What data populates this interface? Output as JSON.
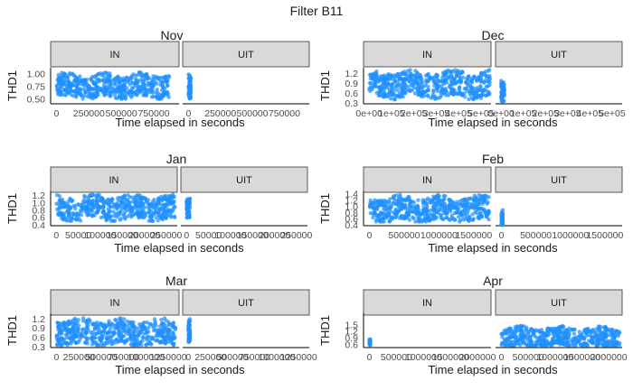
{
  "figure": {
    "title": "Filter B11"
  },
  "colors": {
    "point": "#1E90FF",
    "strip_fill": "#D9D9D9",
    "strip_border": "#333333",
    "axis": "#000000",
    "text": "#1a1a1a",
    "tick_text": "#4d4d4d"
  },
  "chart_data": [
    {
      "type": "scatter",
      "title": "Nov",
      "xlabel": "Time elapsed in seconds",
      "ylabel": "THD1",
      "y_ticks": [
        "0.50",
        "0.75",
        "1.00"
      ],
      "y_tick_values": [
        0.5,
        0.75,
        1.0
      ],
      "ylim": [
        0.4,
        1.12
      ],
      "facets": [
        {
          "strip": "IN",
          "x_ticks": [
            "0",
            "250000",
            "500000",
            "750000"
          ],
          "x_tick_values": [
            0,
            250000,
            500000,
            750000
          ],
          "xlim": [
            -45000,
            945000
          ],
          "x_range": [
            0,
            870000
          ],
          "y_band": [
            0.5,
            1.05
          ],
          "y_center": 0.75
        },
        {
          "strip": "UIT",
          "x_ticks": [
            "0",
            "250000",
            "500000",
            "750000"
          ],
          "x_tick_values": [
            0,
            250000,
            500000,
            750000
          ],
          "xlim": [
            -45000,
            945000
          ],
          "x_range": [
            0,
            20000
          ],
          "y_band": [
            0.5,
            1.02
          ],
          "y_center": 0.75
        }
      ]
    },
    {
      "type": "scatter",
      "title": "Dec",
      "xlabel": "Time elapsed in seconds",
      "ylabel": "THD1",
      "y_ticks": [
        "0.3",
        "0.6",
        "0.9",
        "1.2"
      ],
      "y_tick_values": [
        0.3,
        0.6,
        0.9,
        1.2
      ],
      "ylim": [
        0.27,
        1.36
      ],
      "facets": [
        {
          "strip": "IN",
          "x_ticks": [
            "0e+00",
            "1e+05",
            "2e+05",
            "3e+05",
            "4e+05",
            "5e+05"
          ],
          "x_tick_values": [
            0,
            100000,
            200000,
            300000,
            400000,
            500000
          ],
          "xlim": [
            -25000,
            545000
          ],
          "x_range": [
            0,
            540000
          ],
          "y_band": [
            0.4,
            1.3
          ],
          "y_center": 0.85
        },
        {
          "strip": "UIT",
          "x_ticks": [
            "0e+00",
            "1e+05",
            "2e+05",
            "3e+05",
            "4e+05",
            "5e+05"
          ],
          "x_tick_values": [
            0,
            100000,
            200000,
            300000,
            400000,
            500000
          ],
          "xlim": [
            -25000,
            545000
          ],
          "x_range": [
            0,
            15000
          ],
          "y_band": [
            0.35,
            1.0
          ],
          "y_center": 0.65
        }
      ]
    },
    {
      "type": "scatter",
      "title": "Jan",
      "xlabel": "Time elapsed in seconds",
      "ylabel": "THD1",
      "y_ticks": [
        "0.4",
        "0.6",
        "0.8",
        "1.0",
        "1.2"
      ],
      "y_tick_values": [
        0.4,
        0.6,
        0.8,
        1.0,
        1.2
      ],
      "ylim": [
        0.37,
        1.3
      ],
      "facets": [
        {
          "strip": "IN",
          "x_ticks": [
            "0",
            "50000",
            "100000",
            "150000",
            "200000",
            "250000"
          ],
          "x_tick_values": [
            0,
            50000,
            100000,
            150000,
            200000,
            250000
          ],
          "xlim": [
            -13000,
            275000
          ],
          "x_range": [
            0,
            270000
          ],
          "y_band": [
            0.5,
            1.25
          ],
          "y_center": 0.85
        },
        {
          "strip": "UIT",
          "x_ticks": [
            "0",
            "50000",
            "100000",
            "150000",
            "200000",
            "250000"
          ],
          "x_tick_values": [
            0,
            50000,
            100000,
            150000,
            200000,
            250000
          ],
          "xlim": [
            -13000,
            275000
          ],
          "x_range": [
            0,
            8000
          ],
          "y_band": [
            0.55,
            1.15
          ],
          "y_center": 0.85
        }
      ]
    },
    {
      "type": "scatter",
      "title": "Feb",
      "xlabel": "Time elapsed in seconds",
      "ylabel": "THD1",
      "y_ticks": [
        "0.4",
        "0.6",
        "0.8",
        "1.0",
        "1.2",
        "1.4"
      ],
      "y_tick_values": [
        0.4,
        0.6,
        0.8,
        1.0,
        1.2,
        1.4
      ],
      "ylim": [
        0.37,
        1.48
      ],
      "facets": [
        {
          "strip": "IN",
          "x_ticks": [
            "0",
            "500000",
            "1000000",
            "1500000"
          ],
          "x_tick_values": [
            0,
            500000,
            1000000,
            1500000
          ],
          "xlim": [
            -85000,
            1750000
          ],
          "x_range": [
            0,
            1720000
          ],
          "y_band": [
            0.5,
            1.42
          ],
          "y_center": 0.9
        },
        {
          "strip": "UIT",
          "x_ticks": [
            "0",
            "500000",
            "1000000",
            "1500000"
          ],
          "x_tick_values": [
            0,
            500000,
            1000000,
            1500000
          ],
          "xlim": [
            -85000,
            1750000
          ],
          "x_range": [
            0,
            20000
          ],
          "y_band": [
            0.4,
            0.95
          ],
          "y_center": 0.6
        }
      ]
    },
    {
      "type": "scatter",
      "title": "Mar",
      "xlabel": "Time elapsed in seconds",
      "ylabel": "THD1",
      "y_ticks": [
        "0.3",
        "0.6",
        "0.9",
        "1.2"
      ],
      "y_tick_values": [
        0.3,
        0.6,
        0.9,
        1.2
      ],
      "ylim": [
        0.27,
        1.37
      ],
      "facets": [
        {
          "strip": "IN",
          "x_ticks": [
            "0",
            "250000",
            "500000",
            "750000",
            "1000000",
            "1250000"
          ],
          "x_tick_values": [
            0,
            250000,
            500000,
            750000,
            1000000,
            1250000
          ],
          "xlim": [
            -65000,
            1370000
          ],
          "x_range": [
            0,
            1330000
          ],
          "y_band": [
            0.35,
            1.3
          ],
          "y_center": 0.75
        },
        {
          "strip": "UIT",
          "x_ticks": [
            "0",
            "250000",
            "500000",
            "750000",
            "1000000",
            "1250000"
          ],
          "x_tick_values": [
            0,
            250000,
            500000,
            750000,
            1000000,
            1250000
          ],
          "xlim": [
            -65000,
            1370000
          ],
          "x_range": [
            0,
            20000
          ],
          "y_band": [
            0.45,
            1.25
          ],
          "y_center": 0.8
        }
      ]
    },
    {
      "type": "scatter",
      "title": "Apr",
      "xlabel": "Time elapsed in seconds",
      "ylabel": "THD1",
      "y_ticks": [
        "0.6",
        "0.9",
        "1.2",
        "1.5"
      ],
      "y_tick_values": [
        0.6,
        0.9,
        1.2,
        1.5
      ],
      "ylim": [
        0.45,
        2.0
      ],
      "facets": [
        {
          "strip": "IN",
          "x_ticks": [
            "0",
            "500000",
            "1000000",
            "1500000",
            "2000000"
          ],
          "x_tick_values": [
            0,
            500000,
            1000000,
            1500000,
            2000000
          ],
          "xlim": [
            -110000,
            2250000
          ],
          "x_range": [
            0,
            15000
          ],
          "y_band": [
            0.55,
            0.85
          ],
          "y_center": 0.7
        },
        {
          "strip": "UIT",
          "x_ticks": [
            "0",
            "500000",
            "1000000",
            "1500000",
            "2000000"
          ],
          "x_tick_values": [
            0,
            500000,
            1000000,
            1500000,
            2000000
          ],
          "xlim": [
            -110000,
            2250000
          ],
          "x_range": [
            0,
            2220000
          ],
          "y_band": [
            0.55,
            1.6
          ],
          "y_center": 0.9
        }
      ]
    }
  ]
}
